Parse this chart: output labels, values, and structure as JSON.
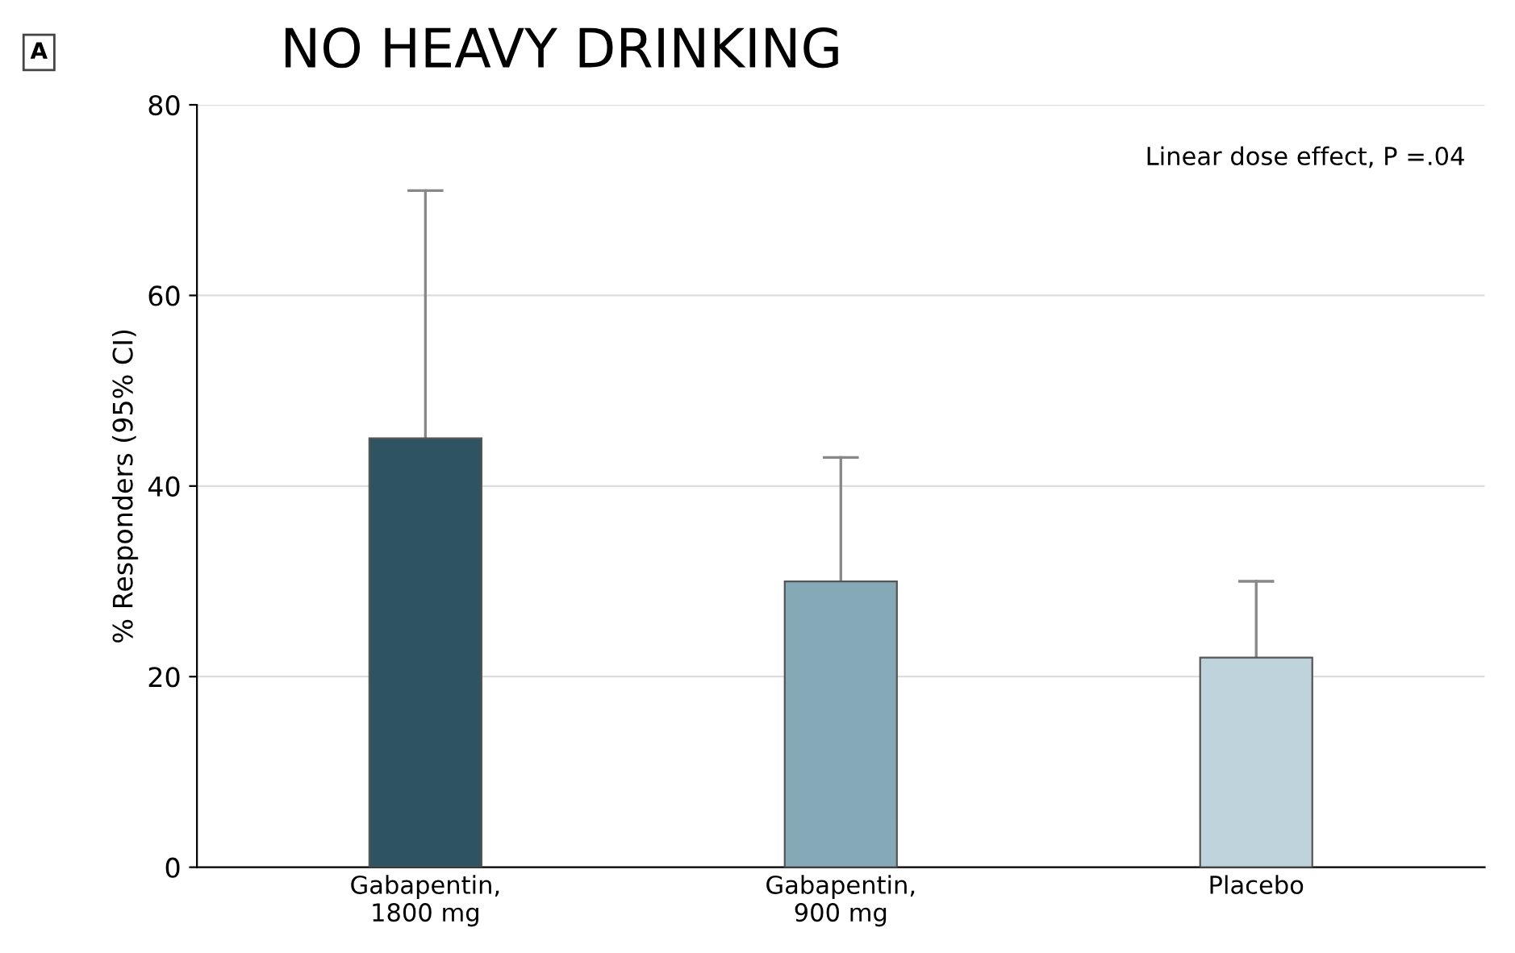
{
  "chart_data": {
    "type": "bar",
    "title": "NO HEAVY DRINKING",
    "ylabel": "% Responders (95% CI)",
    "categories": [
      "Gabapentin,\n1800 mg",
      "Gabapentin,\n900 mg",
      "Placebo"
    ],
    "values": [
      45,
      30,
      22
    ],
    "errors": [
      [
        45,
        71
      ],
      [
        30,
        43
      ],
      [
        22,
        30
      ]
    ],
    "colors": [
      "#2f5461",
      "#86a9b8",
      "#bfd3dc"
    ],
    "ylim": [
      0,
      80
    ],
    "yticks": [
      0,
      20,
      40,
      60,
      80
    ],
    "grid": "y",
    "annotations": [
      "A",
      "Linear dose effect, P =.04"
    ]
  }
}
